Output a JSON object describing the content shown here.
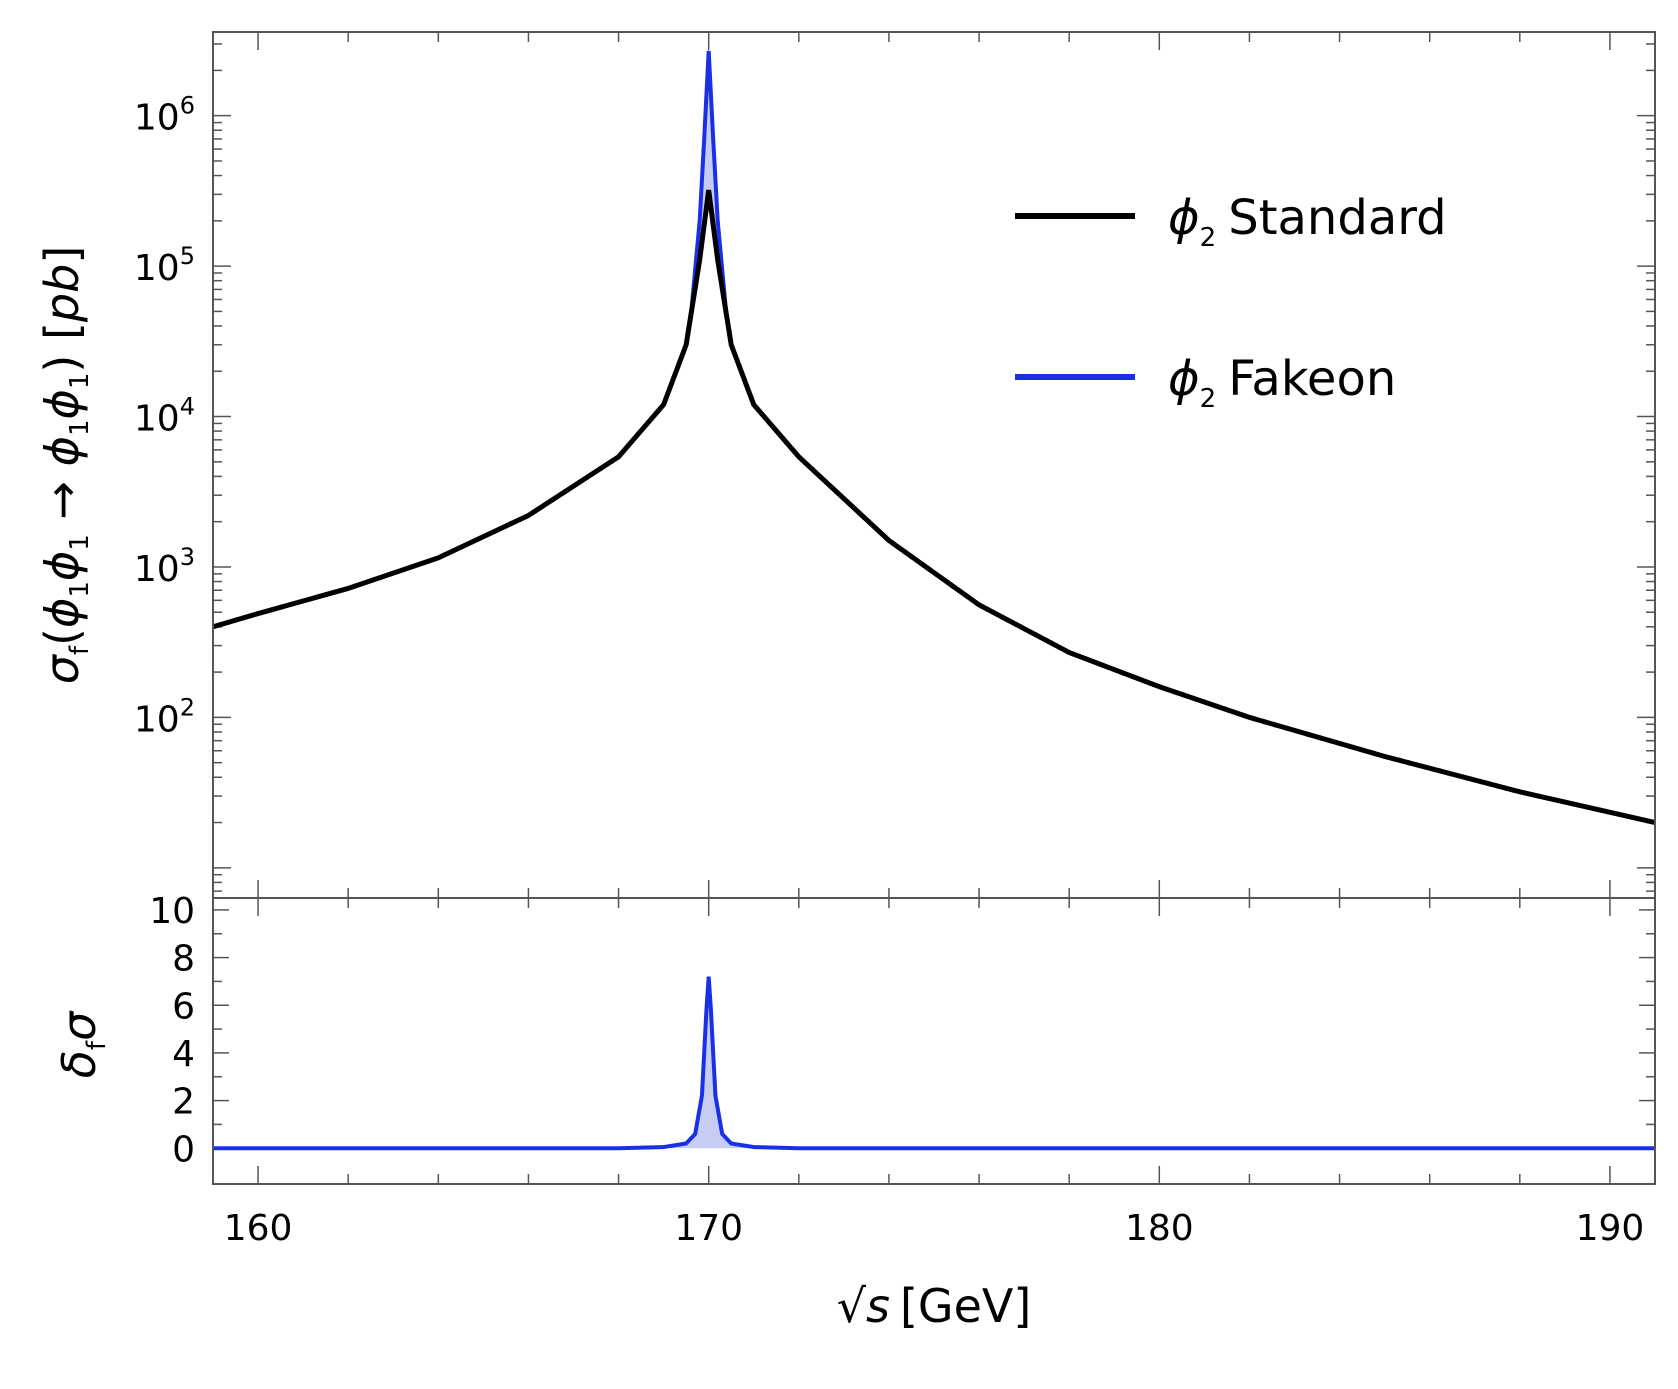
{
  "chart_data": [
    {
      "id": "main",
      "type": "line",
      "ylabel": {
        "sym": "σ",
        "sub": "f",
        "body": "(ϕ₁ϕ₁ → ϕ₁ϕ₁) [pb]",
        "body_parts": [
          "(",
          "ϕ",
          "1",
          "ϕ",
          "1",
          " → ",
          "ϕ",
          "1",
          "ϕ",
          "1",
          ") [",
          "pb",
          "]"
        ]
      },
      "yscale": "log",
      "ylim": [
        6.3,
        3600000
      ],
      "xlim": [
        159,
        191
      ],
      "ytick_exponents": [
        2,
        3,
        4,
        5,
        6
      ],
      "ytick_base": "10",
      "legend": {
        "position": "top-right",
        "entries": [
          {
            "name": "ϕ₂ Standard",
            "sym": "ϕ",
            "sub": "2",
            "label": "Standard",
            "color": "#000000"
          },
          {
            "name": "ϕ₂ Fakeon",
            "sym": "ϕ",
            "sub": "2",
            "label": "Fakeon",
            "color": "#1a30e6"
          }
        ]
      },
      "series": [
        {
          "name": "ϕ₂ Standard",
          "color": "#000000",
          "x": [
            159,
            160,
            162,
            164,
            166,
            168,
            169,
            169.5,
            169.8,
            170,
            170.2,
            170.5,
            171,
            172,
            174,
            176,
            178,
            180,
            182,
            185,
            188,
            191
          ],
          "y": [
            400,
            490,
            720,
            1150,
            2200,
            5400,
            12000,
            30000,
            110000,
            320000,
            110000,
            30000,
            12000,
            5400,
            1500,
            560,
            270,
            160,
            100,
            55,
            32,
            20
          ]
        },
        {
          "name": "ϕ₂ Fakeon",
          "color": "#1a30e6",
          "x": [
            169.6,
            169.8,
            169.9,
            170,
            170.1,
            170.2,
            170.4
          ],
          "y": [
            45000,
            200000,
            700000,
            2700000,
            700000,
            200000,
            45000
          ]
        }
      ],
      "fill_color": "#c6ccf3"
    },
    {
      "id": "ratio",
      "type": "line",
      "ylabel": {
        "sym": "δ",
        "sub": "f",
        "body": "σ"
      },
      "xlabel": {
        "sqrt": "√",
        "var": "s",
        "unit": "[GeV]"
      },
      "ylim": [
        -1.5,
        10.5
      ],
      "xlim": [
        159,
        191
      ],
      "yticks": [
        0,
        2,
        4,
        6,
        8,
        10
      ],
      "yticklabels": [
        "0",
        "2",
        "4",
        "6",
        "8",
        "10"
      ],
      "xticks": [
        160,
        170,
        180,
        190
      ],
      "xticklabels": [
        "160",
        "170",
        "180",
        "190"
      ],
      "series": [
        {
          "name": "δfσ",
          "color": "#1a30e6",
          "x": [
            159,
            168,
            169,
            169.5,
            169.7,
            169.85,
            169.95,
            170,
            170.05,
            170.15,
            170.3,
            170.5,
            171,
            172,
            191
          ],
          "y": [
            0,
            0,
            0.05,
            0.2,
            0.6,
            2.2,
            5.8,
            7.2,
            5.8,
            2.2,
            0.6,
            0.2,
            0.05,
            0,
            0
          ]
        }
      ],
      "fill_color": "#c6ccf3"
    }
  ]
}
